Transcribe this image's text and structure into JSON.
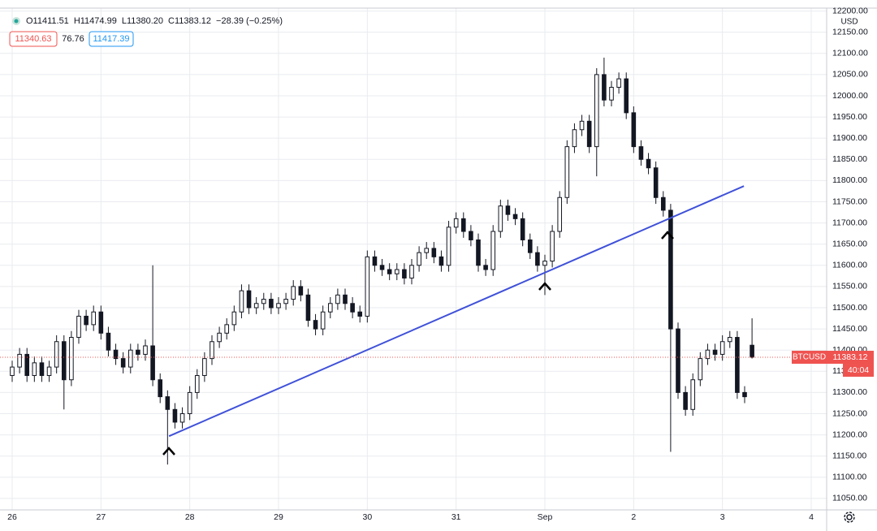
{
  "chart_data": {
    "type": "candlestick",
    "symbol": "BTCUSD",
    "currency": "USD",
    "countdown": "40:04",
    "header": {
      "ohlc": [
        "O11411.51",
        "H11474.99",
        "L11380.20",
        "C11383.12",
        "−28.39 (−0.25%)"
      ],
      "bid": "11340.63",
      "spread": "76.76",
      "ask": "11417.39"
    },
    "color": "#131722",
    "up_fill": "#ffffff",
    "grid": true,
    "categories": [
      "26",
      null,
      null,
      null,
      null,
      null,
      null,
      null,
      null,
      null,
      null,
      null,
      "27",
      null,
      null,
      null,
      null,
      null,
      null,
      null,
      null,
      null,
      null,
      null,
      "28",
      null,
      null,
      null,
      null,
      null,
      null,
      null,
      null,
      null,
      null,
      null,
      "29",
      null,
      null,
      null,
      null,
      null,
      null,
      null,
      null,
      null,
      null,
      null,
      "30",
      null,
      null,
      null,
      null,
      null,
      null,
      null,
      null,
      null,
      null,
      null,
      "31",
      null,
      null,
      null,
      null,
      null,
      null,
      null,
      null,
      null,
      null,
      null,
      "Sep",
      null,
      null,
      null,
      null,
      null,
      null,
      null,
      null,
      null,
      null,
      null,
      "2",
      null,
      null,
      null,
      null,
      null,
      null,
      null,
      null,
      null,
      null,
      null,
      "3",
      null,
      null,
      null,
      null,
      null,
      null,
      null,
      null,
      null,
      null,
      null,
      "4"
    ],
    "open": [
      11340,
      11360,
      11390,
      11340,
      11370,
      11340,
      11360,
      11420,
      11330,
      11430,
      11480,
      11460,
      11490,
      11440,
      11400,
      11380,
      11360,
      11400,
      11390,
      11410,
      11330,
      11290,
      11260,
      11230,
      11250,
      11300,
      11340,
      11380,
      11420,
      11440,
      11460,
      11490,
      11540,
      11500,
      11510,
      11520,
      11500,
      11510,
      11520,
      11550,
      11530,
      11470,
      11450,
      11490,
      11510,
      11530,
      11510,
      11490,
      11480,
      11620,
      11600,
      11590,
      11580,
      11590,
      11570,
      11600,
      11630,
      11640,
      11620,
      11600,
      11690,
      11710,
      11680,
      11660,
      11600,
      11590,
      11680,
      11740,
      11720,
      11710,
      11660,
      11630,
      11600,
      11610,
      11680,
      11760,
      11880,
      11920,
      11940,
      11880,
      12050,
      11990,
      12020,
      12040,
      11960,
      11880,
      11850,
      11830,
      11760,
      11730,
      11450,
      11300,
      11260,
      11330,
      11380,
      11400,
      11390,
      11420,
      11430,
      11300,
      11411.51,
      null,
      null,
      null,
      null,
      null,
      null,
      null,
      null
    ],
    "high": [
      11375,
      11405,
      11405,
      11385,
      11385,
      11375,
      11435,
      11435,
      11445,
      11495,
      11495,
      11505,
      11505,
      11455,
      11415,
      11395,
      11415,
      11415,
      11425,
      11600,
      11345,
      11305,
      11275,
      11265,
      11315,
      11355,
      11395,
      11435,
      11455,
      11475,
      11505,
      11555,
      11555,
      11525,
      11535,
      11535,
      11525,
      11535,
      11565,
      11565,
      11545,
      11485,
      11505,
      11525,
      11545,
      11545,
      11525,
      11505,
      11635,
      11635,
      11615,
      11605,
      11605,
      11605,
      11615,
      11645,
      11655,
      11655,
      11635,
      11705,
      11725,
      11725,
      11695,
      11675,
      11615,
      11695,
      11755,
      11755,
      11735,
      11725,
      11675,
      11645,
      11625,
      11695,
      11775,
      11895,
      11935,
      11955,
      11955,
      12065,
      12090,
      12035,
      12055,
      12055,
      11975,
      11895,
      11865,
      11845,
      11775,
      11745,
      11465,
      11315,
      11345,
      11395,
      11415,
      11415,
      11435,
      11445,
      11445,
      11315,
      11474.99,
      null,
      null,
      null,
      null,
      null,
      null,
      null,
      null
    ],
    "low": [
      11325,
      11345,
      11325,
      11325,
      11325,
      11325,
      11345,
      11260,
      11315,
      11415,
      11445,
      11445,
      11425,
      11385,
      11365,
      11345,
      11345,
      11375,
      11375,
      11315,
      11275,
      11130,
      11215,
      11215,
      11235,
      11285,
      11325,
      11365,
      11405,
      11425,
      11445,
      11475,
      11485,
      11485,
      11495,
      11485,
      11485,
      11495,
      11505,
      11515,
      11455,
      11435,
      11435,
      11475,
      11495,
      11495,
      11475,
      11465,
      11465,
      11585,
      11575,
      11565,
      11565,
      11555,
      11555,
      11585,
      11615,
      11605,
      11585,
      11585,
      11675,
      11665,
      11645,
      11585,
      11575,
      11575,
      11665,
      11705,
      11695,
      11645,
      11615,
      11585,
      11530,
      11595,
      11665,
      11745,
      11865,
      11905,
      11865,
      11810,
      11975,
      11975,
      12005,
      11945,
      11865,
      11835,
      11815,
      11745,
      11715,
      11160,
      11285,
      11245,
      11245,
      11315,
      11365,
      11375,
      11375,
      11405,
      11285,
      11275,
      11380.2,
      null,
      null,
      null,
      null,
      null,
      null,
      null,
      null
    ],
    "close": [
      11360,
      11390,
      11340,
      11370,
      11340,
      11360,
      11420,
      11330,
      11430,
      11480,
      11460,
      11490,
      11440,
      11400,
      11380,
      11360,
      11400,
      11390,
      11410,
      11330,
      11290,
      11260,
      11230,
      11250,
      11300,
      11340,
      11380,
      11420,
      11440,
      11460,
      11490,
      11540,
      11500,
      11510,
      11520,
      11500,
      11510,
      11520,
      11550,
      11530,
      11470,
      11450,
      11490,
      11510,
      11530,
      11510,
      11490,
      11480,
      11620,
      11600,
      11590,
      11580,
      11590,
      11570,
      11600,
      11630,
      11640,
      11620,
      11600,
      11690,
      11710,
      11680,
      11660,
      11600,
      11590,
      11680,
      11740,
      11720,
      11710,
      11660,
      11630,
      11600,
      11610,
      11680,
      11760,
      11880,
      11920,
      11940,
      11880,
      12050,
      11990,
      12020,
      12040,
      11960,
      11880,
      11850,
      11830,
      11760,
      11730,
      11450,
      11300,
      11260,
      11330,
      11380,
      11400,
      11390,
      11420,
      11430,
      11300,
      11290,
      11383.12,
      null,
      null,
      null,
      null,
      null,
      null,
      null,
      null
    ],
    "trend_line": {
      "x": [
        21.2,
        98.9
      ],
      "values": [
        11197,
        11787
      ],
      "color": "#3f51d9"
    },
    "ylim": [
      11023,
      12226
    ],
    "yticks": [
      {
        "value": 11050,
        "label": "11050.00"
      },
      {
        "value": 11100,
        "label": "11100.00"
      },
      {
        "value": 11150,
        "label": "11150.00"
      },
      {
        "value": 11200,
        "label": "11200.00"
      },
      {
        "value": 11250,
        "label": "11250.00"
      },
      {
        "value": 11300,
        "label": "11300.00"
      },
      {
        "value": 11350,
        "label": "11350.00"
      },
      {
        "value": 11400,
        "label": "11400.00"
      },
      {
        "value": 11450,
        "label": "11450.00"
      },
      {
        "value": 11500,
        "label": "11500.00"
      },
      {
        "value": 11550,
        "label": "11550.00"
      },
      {
        "value": 11600,
        "label": "11600.00"
      },
      {
        "value": 11650,
        "label": "11650.00"
      },
      {
        "value": 11700,
        "label": "11700.00"
      },
      {
        "value": 11750,
        "label": "11750.00"
      },
      {
        "value": 11800,
        "label": "11800.00"
      },
      {
        "value": 11850,
        "label": "11850.00"
      },
      {
        "value": 11900,
        "label": "11900.00"
      },
      {
        "value": 11950,
        "label": "11950.00"
      },
      {
        "value": 12000,
        "label": "12000.00"
      },
      {
        "value": 12050,
        "label": "12050.00"
      },
      {
        "value": 12100,
        "label": "12100.00"
      },
      {
        "value": 12150,
        "label": "12150.00"
      },
      {
        "value": 12200,
        "label": "12200.00"
      }
    ]
  }
}
